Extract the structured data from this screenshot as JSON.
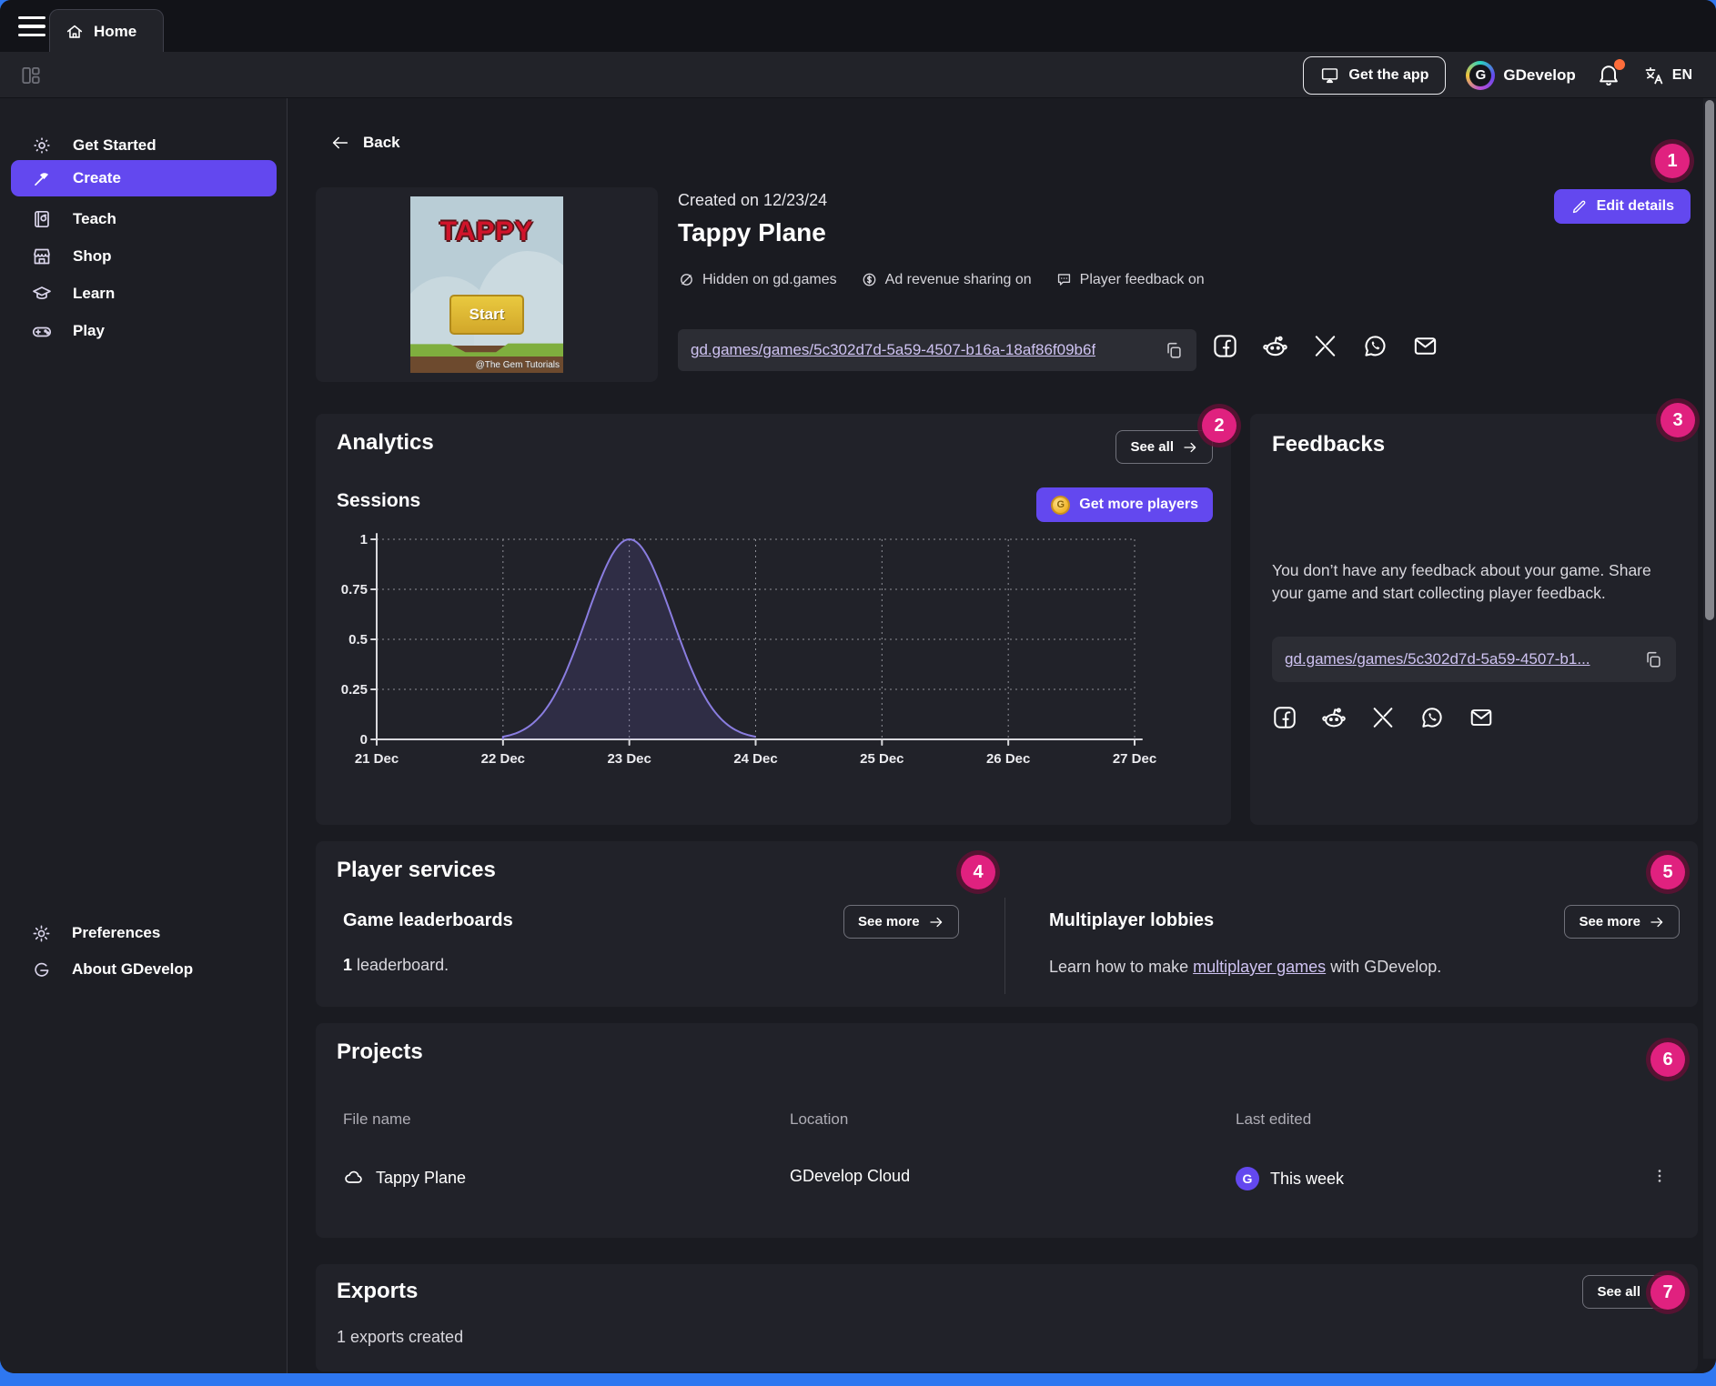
{
  "titlebar": {
    "tab_home": "Home"
  },
  "toolbar": {
    "get_the_app": "Get the app",
    "brand": "GDevelop",
    "language": "EN"
  },
  "sidebar": {
    "items": [
      {
        "label": "Get Started",
        "icon": "sun-icon",
        "active": false
      },
      {
        "label": "Create",
        "icon": "hammer-icon",
        "active": true
      },
      {
        "label": "Teach",
        "icon": "book-icon",
        "active": false
      },
      {
        "label": "Shop",
        "icon": "storefront-icon",
        "active": false
      },
      {
        "label": "Learn",
        "icon": "graduation-cap-icon",
        "active": false
      },
      {
        "label": "Play",
        "icon": "gamepad-icon",
        "active": false
      }
    ],
    "footer_items": [
      {
        "label": "Preferences",
        "icon": "gear-icon"
      },
      {
        "label": "About GDevelop",
        "icon": "gdevelop-icon"
      }
    ]
  },
  "game_header": {
    "back_label": "Back",
    "created_on": "Created on 12/23/24",
    "title": "Tappy Plane",
    "status": [
      {
        "label": "Hidden on gd.games",
        "icon": "eye-off-icon"
      },
      {
        "label": "Ad revenue sharing on",
        "icon": "dollar-circle-icon"
      },
      {
        "label": "Player feedback on",
        "icon": "speech-bubble-icon"
      }
    ],
    "share_url": "gd.games/games/5c302d7d-5a59-4507-b16a-18af86f09b6f",
    "edit_details_label": "Edit details",
    "thumbnail": {
      "title_text": "TAPPY",
      "start_button": "Start",
      "watermark": "@The Gem Tutorials"
    }
  },
  "analytics": {
    "title": "Analytics",
    "see_all_label": "See all",
    "subtitle": "Sessions",
    "get_more_players_label": "Get more players"
  },
  "chart_data": {
    "type": "area",
    "title": "Sessions",
    "categories": [
      "21 Dec",
      "22 Dec",
      "23 Dec",
      "24 Dec",
      "25 Dec",
      "26 Dec",
      "27 Dec"
    ],
    "values": [
      0,
      0,
      1,
      0,
      0,
      0,
      0
    ],
    "yticks": [
      0,
      0.25,
      0.5,
      0.75,
      1
    ],
    "ylim": [
      0,
      1
    ],
    "xlabel": "",
    "ylabel": "",
    "grid": "dashed",
    "smooth": true,
    "legend": "none",
    "line_color": "#8a7de0",
    "fill_color": "rgba(122,106,220,0.16)"
  },
  "feedbacks": {
    "title": "Feedbacks",
    "empty_message": "You don’t have any feedback about your game. Share your game and start collecting player feedback.",
    "share_url_truncated": "gd.games/games/5c302d7d-5a59-4507-b1..."
  },
  "player_services": {
    "title": "Player services",
    "leaderboards": {
      "heading": "Game leaderboards",
      "see_more_label": "See more",
      "count": "1",
      "count_text": "leaderboard."
    },
    "lobbies": {
      "heading": "Multiplayer lobbies",
      "see_more_label": "See more",
      "sentence_prefix": "Learn how to make",
      "link_text": "multiplayer games",
      "sentence_suffix": "with GDevelop."
    }
  },
  "projects": {
    "title": "Projects",
    "columns": [
      "File name",
      "Location",
      "Last edited"
    ],
    "rows": [
      {
        "file_name": "Tappy Plane",
        "location": "GDevelop Cloud",
        "last_edited": "This week"
      }
    ]
  },
  "exports": {
    "title": "Exports",
    "summary": "1 exports created",
    "see_all_label": "See all"
  },
  "annotations": {
    "badges": [
      "1",
      "2",
      "3",
      "4",
      "5",
      "6",
      "7"
    ]
  },
  "colors": {
    "accent_purple": "#6348ef",
    "badge_pink": "#e0217f",
    "link_lavender": "#cfc3f2",
    "notification_orange": "#ff6d3b",
    "footer_blue": "#2e77f0",
    "card_background": "#212229",
    "app_background": "#1a1b21"
  }
}
